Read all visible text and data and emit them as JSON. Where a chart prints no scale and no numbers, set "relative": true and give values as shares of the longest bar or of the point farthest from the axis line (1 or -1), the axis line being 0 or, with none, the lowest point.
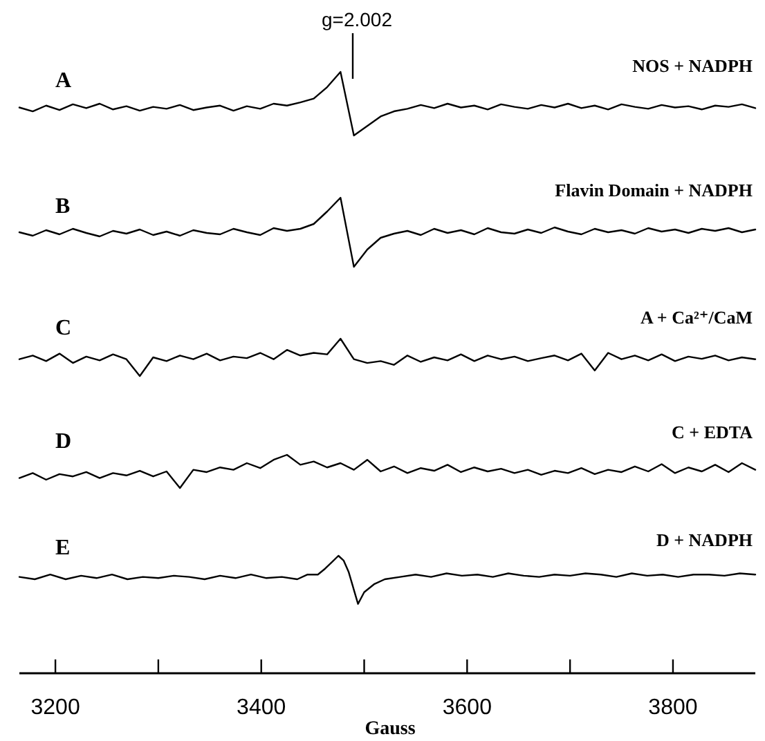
{
  "chart_data": [
    {
      "type": "line",
      "relative": true,
      "title": "A",
      "subtitle": "NOS + NADPH",
      "tick_labels": false,
      "annotations": [
        "g=2.002"
      ],
      "categories": [
        null,
        null,
        null,
        null,
        null,
        null,
        null,
        null,
        null,
        null,
        null,
        null,
        null,
        null,
        null,
        null,
        null,
        null,
        null,
        null,
        null,
        null,
        null,
        null,
        null,
        null,
        null,
        null,
        null,
        null,
        null,
        null,
        null,
        null,
        null,
        null,
        null,
        null,
        null,
        null,
        null,
        null,
        null,
        null,
        null,
        null,
        null,
        null,
        null,
        null,
        null,
        null,
        null,
        null,
        null,
        null
      ],
      "series": [
        {
          "color": "#000000",
          "values": [
            0.44,
            0.38,
            0.47,
            0.4,
            0.49,
            0.43,
            0.5,
            0.41,
            0.46,
            0.39,
            0.45,
            0.42,
            0.48,
            0.4,
            0.44,
            0.47,
            0.39,
            0.46,
            0.42,
            0.5,
            0.47,
            0.52,
            0.58,
            0.76,
            1.0,
            0.0,
            0.15,
            0.3,
            0.38,
            0.42,
            0.48,
            0.43,
            0.5,
            0.44,
            0.47,
            0.41,
            0.49,
            0.45,
            0.42,
            0.48,
            0.44,
            0.5,
            0.43,
            0.47,
            0.41,
            0.49,
            0.45,
            0.42,
            0.48,
            0.44,
            0.46,
            0.41,
            0.47,
            0.45,
            0.49,
            0.43
          ]
        }
      ]
    },
    {
      "type": "line",
      "relative": true,
      "title": "B",
      "subtitle": "Flavin Domain + NADPH",
      "tick_labels": false,
      "categories": [
        null,
        null,
        null,
        null,
        null,
        null,
        null,
        null,
        null,
        null,
        null,
        null,
        null,
        null,
        null,
        null,
        null,
        null,
        null,
        null,
        null,
        null,
        null,
        null,
        null,
        null,
        null,
        null,
        null,
        null,
        null,
        null,
        null,
        null,
        null,
        null,
        null,
        null,
        null,
        null,
        null,
        null,
        null,
        null,
        null,
        null,
        null,
        null,
        null,
        null,
        null,
        null,
        null,
        null,
        null,
        null
      ],
      "series": [
        {
          "color": "#000000",
          "values": [
            0.5,
            0.45,
            0.53,
            0.47,
            0.55,
            0.49,
            0.44,
            0.52,
            0.48,
            0.54,
            0.46,
            0.51,
            0.45,
            0.53,
            0.49,
            0.47,
            0.55,
            0.5,
            0.46,
            0.56,
            0.52,
            0.55,
            0.62,
            0.8,
            1.0,
            0.0,
            0.25,
            0.42,
            0.48,
            0.52,
            0.46,
            0.55,
            0.49,
            0.53,
            0.47,
            0.56,
            0.5,
            0.48,
            0.54,
            0.49,
            0.57,
            0.51,
            0.47,
            0.55,
            0.5,
            0.53,
            0.48,
            0.56,
            0.51,
            0.54,
            0.49,
            0.55,
            0.52,
            0.56,
            0.5,
            0.54
          ]
        }
      ]
    },
    {
      "type": "line",
      "relative": true,
      "title": "C",
      "subtitle": "A + Ca²⁺/CaM",
      "tick_labels": false,
      "categories": [
        null,
        null,
        null,
        null,
        null,
        null,
        null,
        null,
        null,
        null,
        null,
        null,
        null,
        null,
        null,
        null,
        null,
        null,
        null,
        null,
        null,
        null,
        null,
        null,
        null,
        null,
        null,
        null,
        null,
        null,
        null,
        null,
        null,
        null,
        null,
        null,
        null,
        null,
        null,
        null,
        null,
        null,
        null,
        null,
        null,
        null,
        null,
        null,
        null,
        null,
        null,
        null,
        null,
        null,
        null,
        null
      ],
      "series": [
        {
          "color": "#000000",
          "values": [
            0.45,
            0.55,
            0.4,
            0.6,
            0.35,
            0.52,
            0.42,
            0.58,
            0.45,
            0.0,
            0.5,
            0.4,
            0.55,
            0.45,
            0.6,
            0.42,
            0.52,
            0.48,
            0.62,
            0.45,
            0.7,
            0.55,
            0.62,
            0.58,
            1.0,
            0.45,
            0.35,
            0.4,
            0.3,
            0.55,
            0.38,
            0.5,
            0.42,
            0.58,
            0.4,
            0.55,
            0.45,
            0.52,
            0.4,
            0.48,
            0.55,
            0.42,
            0.6,
            0.15,
            0.62,
            0.45,
            0.55,
            0.42,
            0.58,
            0.4,
            0.52,
            0.46,
            0.55,
            0.42,
            0.5,
            0.45
          ]
        }
      ]
    },
    {
      "type": "line",
      "relative": true,
      "title": "D",
      "subtitle": "C + EDTA",
      "tick_labels": false,
      "categories": [
        null,
        null,
        null,
        null,
        null,
        null,
        null,
        null,
        null,
        null,
        null,
        null,
        null,
        null,
        null,
        null,
        null,
        null,
        null,
        null,
        null,
        null,
        null,
        null,
        null,
        null,
        null,
        null,
        null,
        null,
        null,
        null,
        null,
        null,
        null,
        null,
        null,
        null,
        null,
        null,
        null,
        null,
        null,
        null,
        null,
        null,
        null,
        null,
        null,
        null,
        null,
        null,
        null,
        null,
        null,
        null
      ],
      "series": [
        {
          "color": "#000000",
          "values": [
            0.3,
            0.45,
            0.25,
            0.42,
            0.35,
            0.48,
            0.3,
            0.45,
            0.38,
            0.52,
            0.35,
            0.5,
            0.0,
            0.55,
            0.48,
            0.62,
            0.55,
            0.75,
            0.6,
            0.85,
            1.0,
            0.7,
            0.8,
            0.62,
            0.75,
            0.55,
            0.85,
            0.5,
            0.65,
            0.45,
            0.6,
            0.52,
            0.7,
            0.48,
            0.62,
            0.5,
            0.58,
            0.45,
            0.55,
            0.4,
            0.52,
            0.45,
            0.6,
            0.42,
            0.55,
            0.48,
            0.65,
            0.5,
            0.72,
            0.45,
            0.62,
            0.5,
            0.7,
            0.48,
            0.75,
            0.55
          ]
        }
      ]
    },
    {
      "type": "line",
      "relative": true,
      "title": "E",
      "subtitle": "D + NADPH",
      "xlabel": "Gauss",
      "xlim": [
        3165,
        3880
      ],
      "xticks": [
        3200,
        {
          "value": 3300,
          "label": null
        },
        3400,
        {
          "value": 3500,
          "label": null
        },
        3600,
        {
          "value": 3700,
          "label": null
        },
        3800
      ],
      "x": [
        3165,
        3180,
        3195,
        3210,
        3225,
        3240,
        3255,
        3270,
        3285,
        3300,
        3315,
        3330,
        3345,
        3360,
        3375,
        3390,
        3405,
        3420,
        3435,
        3445,
        3455,
        3462,
        3468,
        3475,
        3480,
        3485,
        3490,
        3494,
        3500,
        3510,
        3520,
        3535,
        3550,
        3565,
        3580,
        3595,
        3610,
        3625,
        3640,
        3655,
        3670,
        3685,
        3700,
        3715,
        3730,
        3745,
        3760,
        3775,
        3790,
        3805,
        3820,
        3835,
        3850,
        3865,
        3880
      ],
      "series": [
        {
          "color": "#000000",
          "values": [
            0.82,
            0.8,
            0.84,
            0.8,
            0.83,
            0.81,
            0.84,
            0.8,
            0.82,
            0.81,
            0.83,
            0.82,
            0.8,
            0.83,
            0.81,
            0.84,
            0.81,
            0.82,
            0.8,
            0.84,
            0.84,
            0.89,
            0.94,
            1.0,
            0.96,
            0.86,
            0.71,
            0.59,
            0.69,
            0.76,
            0.8,
            0.82,
            0.84,
            0.82,
            0.85,
            0.83,
            0.84,
            0.82,
            0.85,
            0.83,
            0.82,
            0.84,
            0.83,
            0.85,
            0.84,
            0.82,
            0.85,
            0.83,
            0.84,
            0.82,
            0.84,
            0.84,
            0.83,
            0.85,
            0.84
          ]
        }
      ]
    }
  ]
}
